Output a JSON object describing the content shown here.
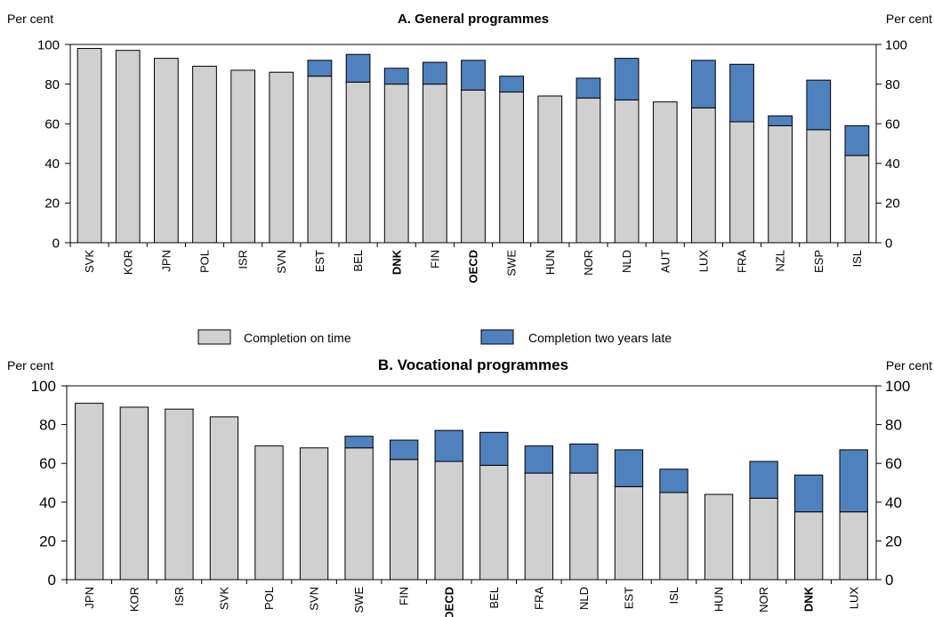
{
  "legend": {
    "on_time": "Completion on time",
    "late": "Completion two years late"
  },
  "colors": {
    "on_time": "#d0d0d0",
    "late": "#4f81bd",
    "bar_stroke": "#000000",
    "axis": "#000000"
  },
  "chart_data": [
    {
      "type": "bar",
      "stacked": true,
      "title": "A. General programmes",
      "ylabel_left": "Per cent",
      "ylabel_right": "Per cent",
      "ylim": [
        0,
        100
      ],
      "yticks": [
        0,
        20,
        40,
        60,
        80,
        100
      ],
      "grid": false,
      "categories": [
        "SVK",
        "KOR",
        "JPN",
        "POL",
        "ISR",
        "SVN",
        "EST",
        "BEL",
        "DNK",
        "FIN",
        "OECD",
        "SWE",
        "HUN",
        "NOR",
        "NLD",
        "AUT",
        "LUX",
        "FRA",
        "NZL",
        "ESP",
        "ISL"
      ],
      "bold_categories": [
        "DNK",
        "OECD"
      ],
      "series": [
        {
          "name": "Completion on time",
          "values": [
            98,
            97,
            93,
            89,
            87,
            86,
            84,
            81,
            80,
            80,
            77,
            76,
            74,
            73,
            72,
            71,
            68,
            61,
            59,
            57,
            44
          ]
        },
        {
          "name": "Completion two years late",
          "values": [
            0,
            0,
            0,
            0,
            0,
            0,
            8,
            14,
            8,
            11,
            15,
            8,
            0,
            10,
            21,
            0,
            24,
            29,
            5,
            25,
            15
          ]
        }
      ]
    },
    {
      "type": "bar",
      "stacked": true,
      "title": "B. Vocational programmes",
      "ylabel_left": "Per cent",
      "ylabel_right": "Per cent",
      "ylim": [
        0,
        100
      ],
      "yticks": [
        0,
        20,
        40,
        60,
        80,
        100
      ],
      "grid": false,
      "categories": [
        "JPN",
        "KOR",
        "ISR",
        "SVK",
        "POL",
        "SVN",
        "SWE",
        "FIN",
        "OECD",
        "BEL",
        "FRA",
        "NLD",
        "EST",
        "ISL",
        "HUN",
        "NOR",
        "DNK",
        "LUX"
      ],
      "bold_categories": [
        "OECD",
        "DNK"
      ],
      "series": [
        {
          "name": "Completion on time",
          "values": [
            91,
            89,
            88,
            84,
            69,
            68,
            68,
            62,
            61,
            59,
            55,
            55,
            48,
            45,
            44,
            42,
            35,
            35
          ]
        },
        {
          "name": "Completion two years late",
          "values": [
            0,
            0,
            0,
            0,
            0,
            0,
            6,
            10,
            16,
            17,
            14,
            15,
            19,
            12,
            0,
            19,
            19,
            32
          ]
        }
      ]
    }
  ]
}
